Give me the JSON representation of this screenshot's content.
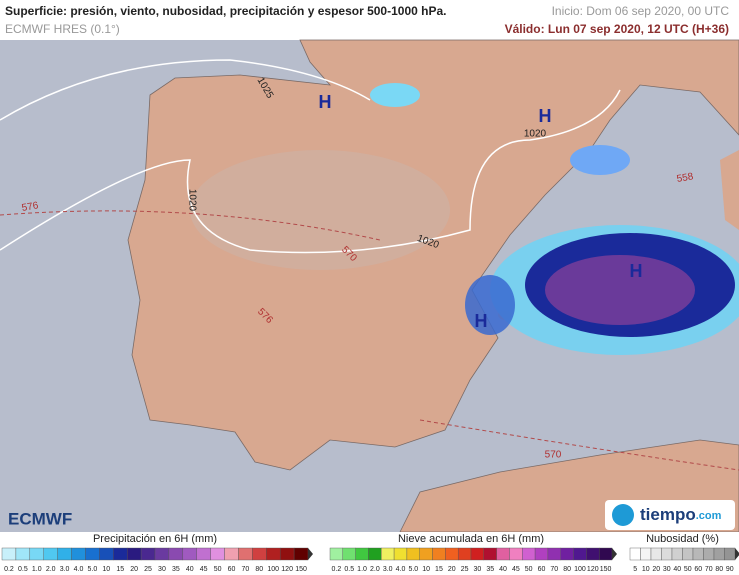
{
  "header": {
    "title": "Superficie: presión, viento, nubosidad, precipitación y espesor 500-1000 hPa.",
    "model": "ECMWF HRES (0.1°)",
    "init": "Inicio: Dom 06 sep 2020, 00 UTC",
    "valid": "Válido: Lun 07 sep 2020, 12 UTC (H+36)"
  },
  "map": {
    "isobars": [
      "1025",
      "1020",
      "1020",
      "1020"
    ],
    "thickness": [
      "576",
      "570",
      "576",
      "570",
      "558"
    ],
    "highs": [
      "H",
      "H",
      "H",
      "H"
    ]
  },
  "footer": {
    "ecmwf": "ECMWF",
    "brand_name": "tiempo",
    "brand_domain": ".com"
  },
  "legends": [
    {
      "title": "Precipitación en 6H (mm)",
      "labels": [
        "0.2",
        "0.5",
        "1.0",
        "2.0",
        "3.0",
        "4.0",
        "5.0",
        "10",
        "15",
        "20",
        "25",
        "30",
        "35",
        "40",
        "45",
        "50",
        "60",
        "70",
        "80",
        "100",
        "120",
        "150"
      ]
    },
    {
      "title": "Nieve acumulada en 6H (mm)",
      "labels": [
        "0.2",
        "0.5",
        "1.0",
        "2.0",
        "3.0",
        "4.0",
        "5.0",
        "10",
        "15",
        "20",
        "25",
        "30",
        "35",
        "40",
        "45",
        "50",
        "60",
        "70",
        "80",
        "100",
        "120",
        "150"
      ]
    },
    {
      "title": "Nubosidad (%)",
      "labels": [
        "5",
        "10",
        "20",
        "30",
        "40",
        "50",
        "60",
        "70",
        "80",
        "90"
      ]
    }
  ]
}
